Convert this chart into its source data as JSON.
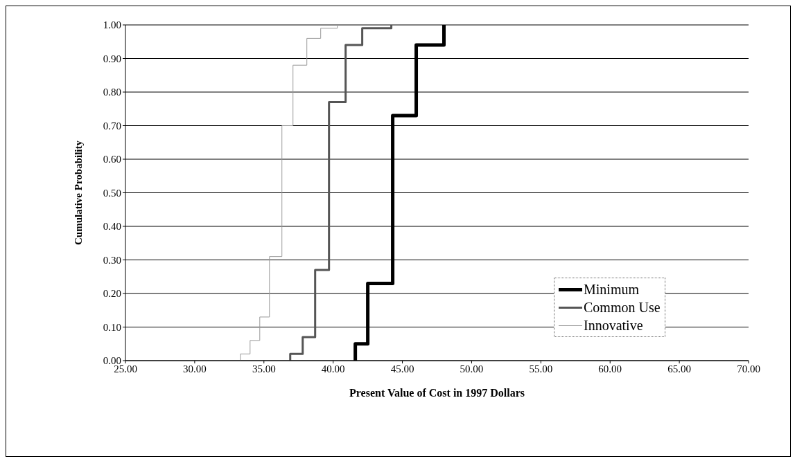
{
  "chart_data": {
    "type": "step",
    "xlabel": "Present Value of Cost in 1997 Dollars",
    "ylabel": "Cumulative Probability",
    "xlim": [
      25,
      70
    ],
    "xticks": [
      {
        "value": 25,
        "label": "25.00"
      },
      {
        "value": 30,
        "label": "30.00"
      },
      {
        "value": 35,
        "label": "35.00"
      },
      {
        "value": 40,
        "label": "40.00"
      },
      {
        "value": 45,
        "label": "45.00"
      },
      {
        "value": 50,
        "label": "50.00"
      },
      {
        "value": 55,
        "label": "55.00"
      },
      {
        "value": 60,
        "label": "60.00"
      },
      {
        "value": 65,
        "label": "65.00"
      },
      {
        "value": 70,
        "label": "70.00"
      }
    ],
    "ylim": [
      0,
      1
    ],
    "yticks": [
      {
        "value": 0,
        "label": "0.00"
      },
      {
        "value": 0.1,
        "label": "0.10"
      },
      {
        "value": 0.2,
        "label": "0.20"
      },
      {
        "value": 0.3,
        "label": "0.30"
      },
      {
        "value": 0.4,
        "label": "0.40"
      },
      {
        "value": 0.5,
        "label": "0.50"
      },
      {
        "value": 0.6,
        "label": "0.60"
      },
      {
        "value": 0.7,
        "label": "0.70"
      },
      {
        "value": 0.8,
        "label": "0.80"
      },
      {
        "value": 0.9,
        "label": "0.90"
      },
      {
        "value": 1,
        "label": "1.00"
      }
    ],
    "grid": "y",
    "legend": "bottom right",
    "marker": "none",
    "line_style": "solid",
    "series": [
      {
        "name": "Minimum",
        "color": "#000000",
        "x": [
          41.6,
          41.6,
          42.5,
          44.3,
          46.0,
          48.0
        ],
        "values": [
          0,
          0.05,
          0.23,
          0.73,
          0.94,
          1.0
        ]
      },
      {
        "name": "Common Use",
        "color": "#555555",
        "x": [
          36.9,
          36.9,
          37.8,
          38.7,
          39.7,
          40.9,
          42.1,
          44.2
        ],
        "values": [
          0,
          0.02,
          0.07,
          0.27,
          0.77,
          0.94,
          0.99,
          1.0
        ]
      },
      {
        "name": "Innovative",
        "color": "#999999",
        "x": [
          33.3,
          33.3,
          34.0,
          34.7,
          35.4,
          36.3,
          37.1,
          38.1,
          39.1,
          40.3
        ],
        "values": [
          0,
          0.02,
          0.06,
          0.13,
          0.31,
          0.7,
          0.88,
          0.96,
          0.99,
          1.0
        ]
      }
    ]
  }
}
